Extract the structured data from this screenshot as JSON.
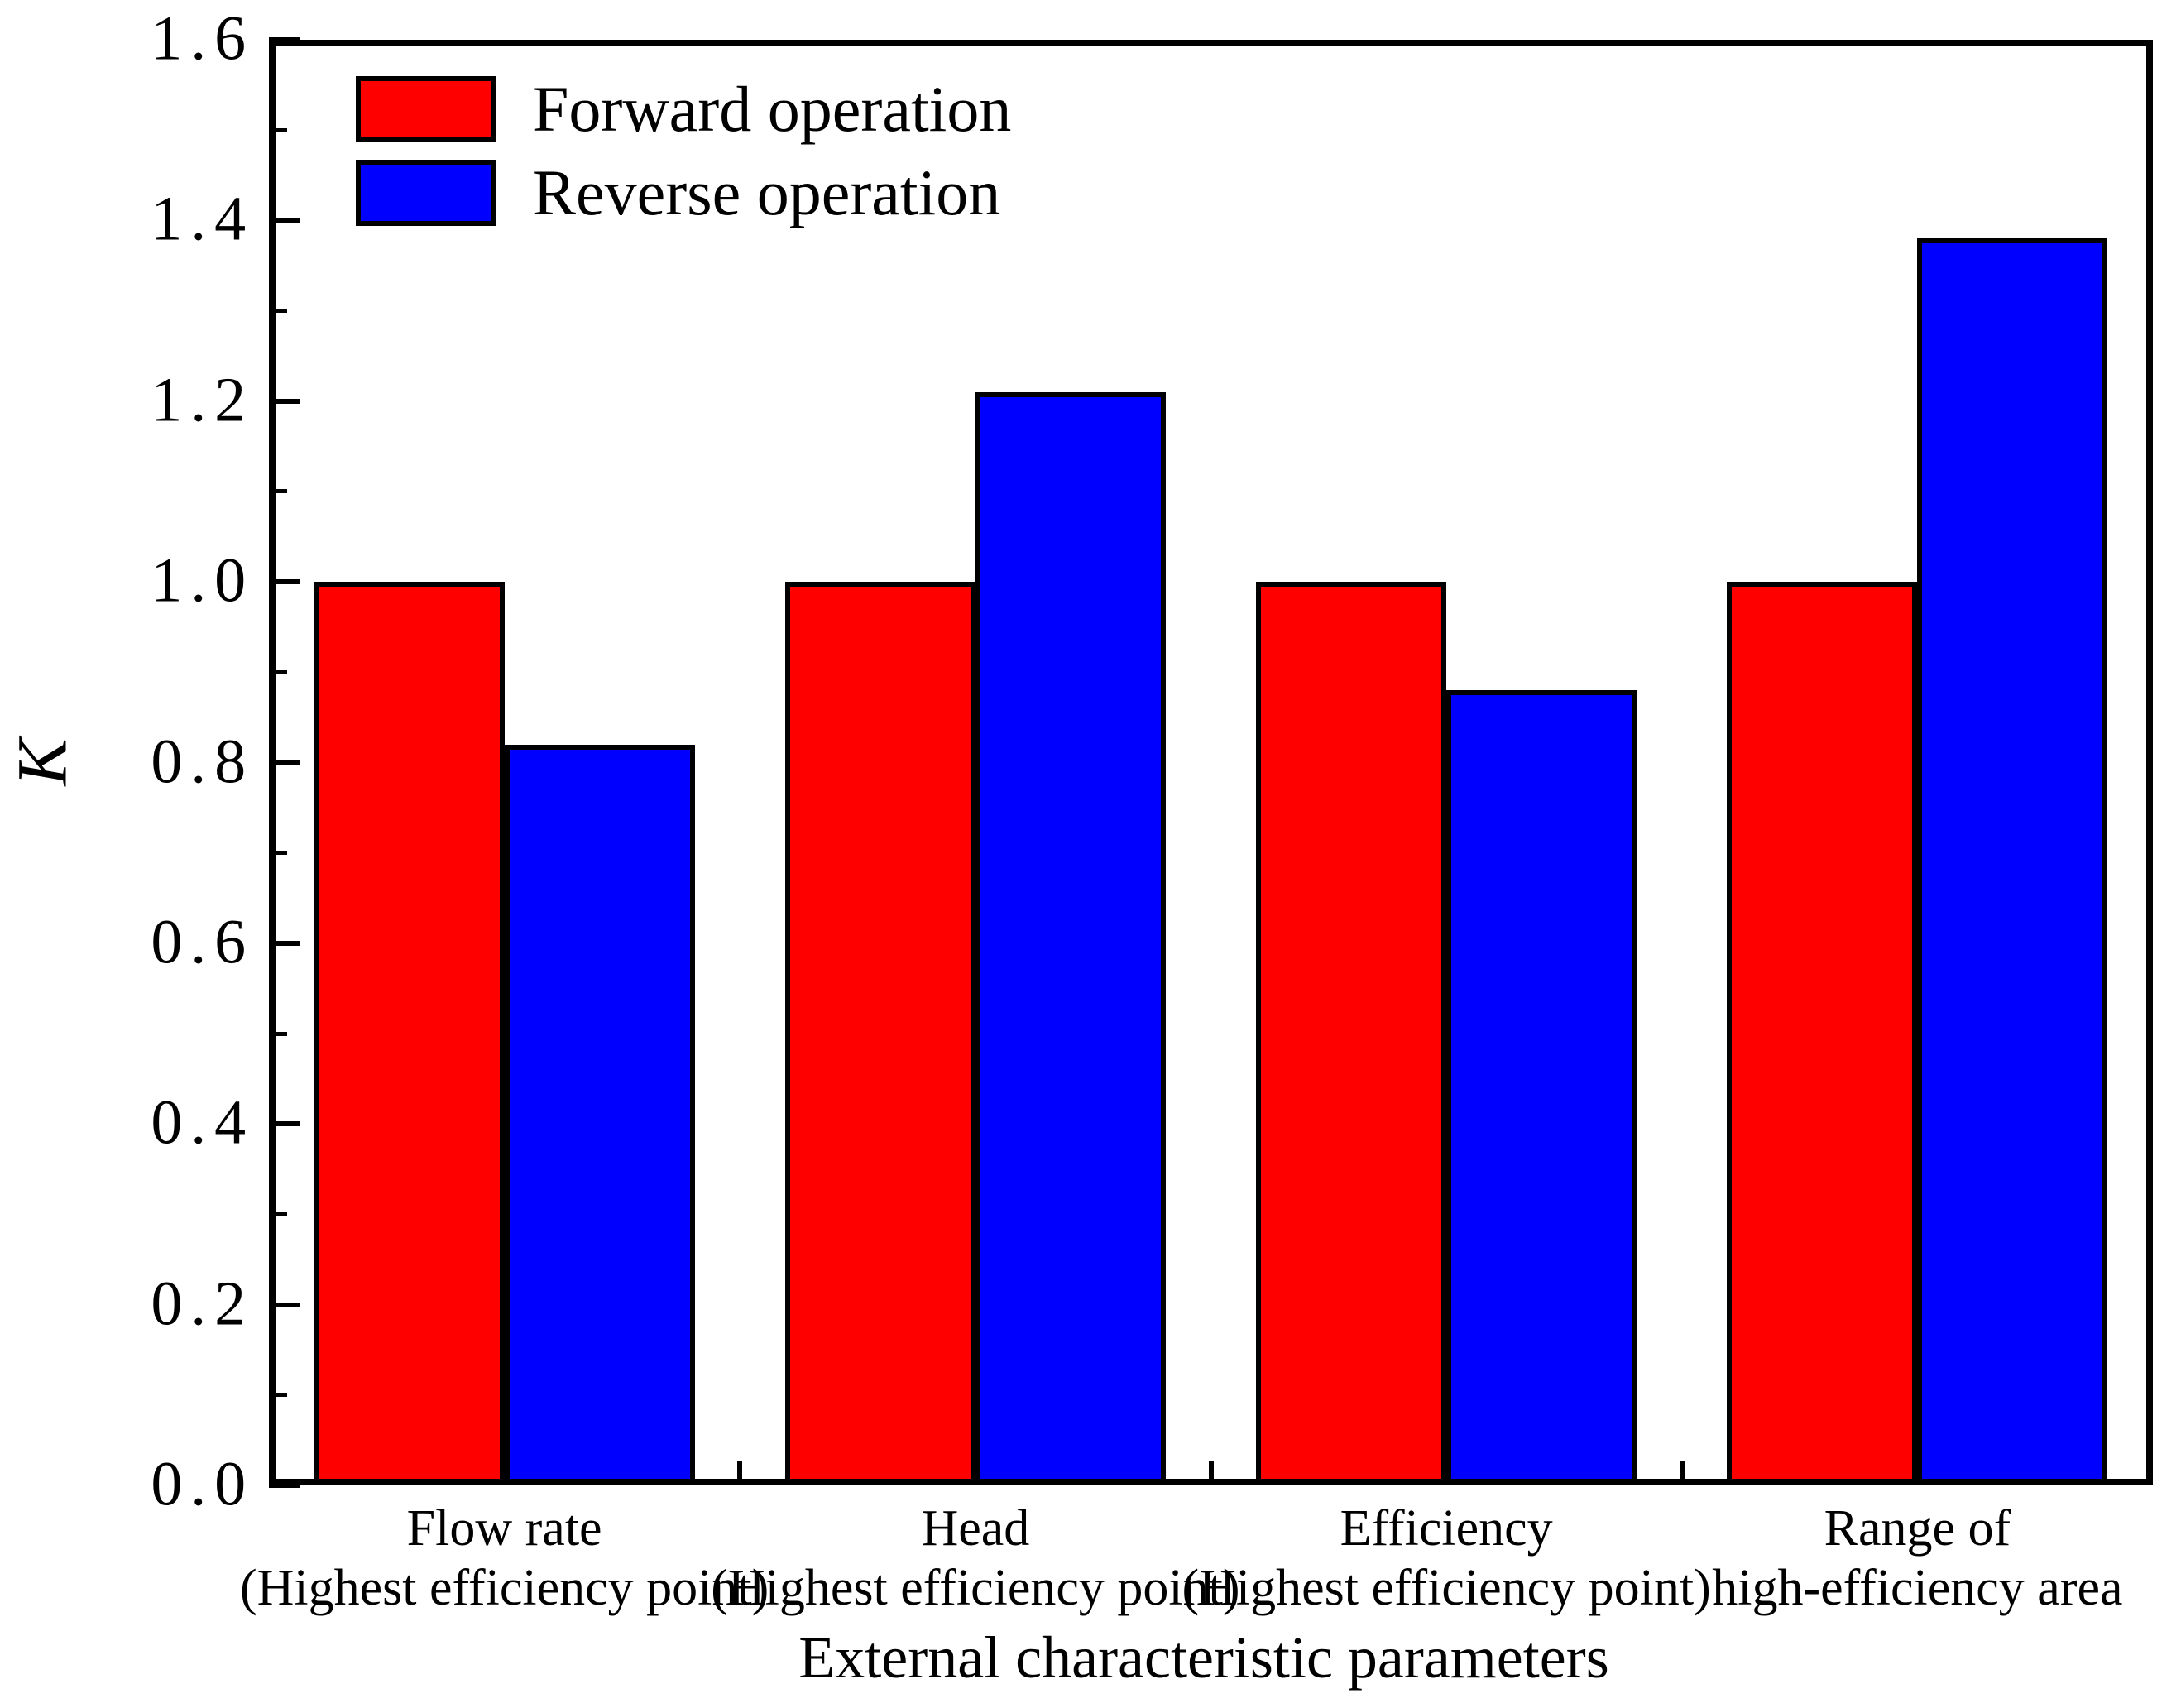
{
  "chart_data": {
    "type": "bar",
    "title": "",
    "categories": [
      {
        "line1": "Flow rate",
        "line2": "(Highest efficiency point)"
      },
      {
        "line1": "Head",
        "line2": "(Highest efficiency point)"
      },
      {
        "line1": "Efficiency",
        "line2": "(Highest efficiency point)"
      },
      {
        "line1": "Range of",
        "line2": "high-efficiency area"
      }
    ],
    "series": [
      {
        "name": "Forward operation",
        "color": "#ff0000",
        "values": [
          1.0,
          1.0,
          1.0,
          1.0
        ]
      },
      {
        "name": "Reverse operation",
        "color": "#0000ff",
        "values": [
          0.82,
          1.21,
          0.88,
          1.38
        ]
      }
    ],
    "xlabel": "External characteristic parameters",
    "ylabel": "K",
    "ylim": [
      0.0,
      1.6
    ],
    "ytick_step": 0.2,
    "yminor_step": 0.1,
    "ytick_labels": [
      "0.0",
      "0.2",
      "0.4",
      "0.6",
      "0.8",
      "1.0",
      "1.2",
      "1.4",
      "1.6"
    ],
    "legend_position": "upper-left",
    "grid": false,
    "bar_outline_color": "#000000",
    "axis_color": "#000000",
    "background_color": "#ffffff"
  }
}
